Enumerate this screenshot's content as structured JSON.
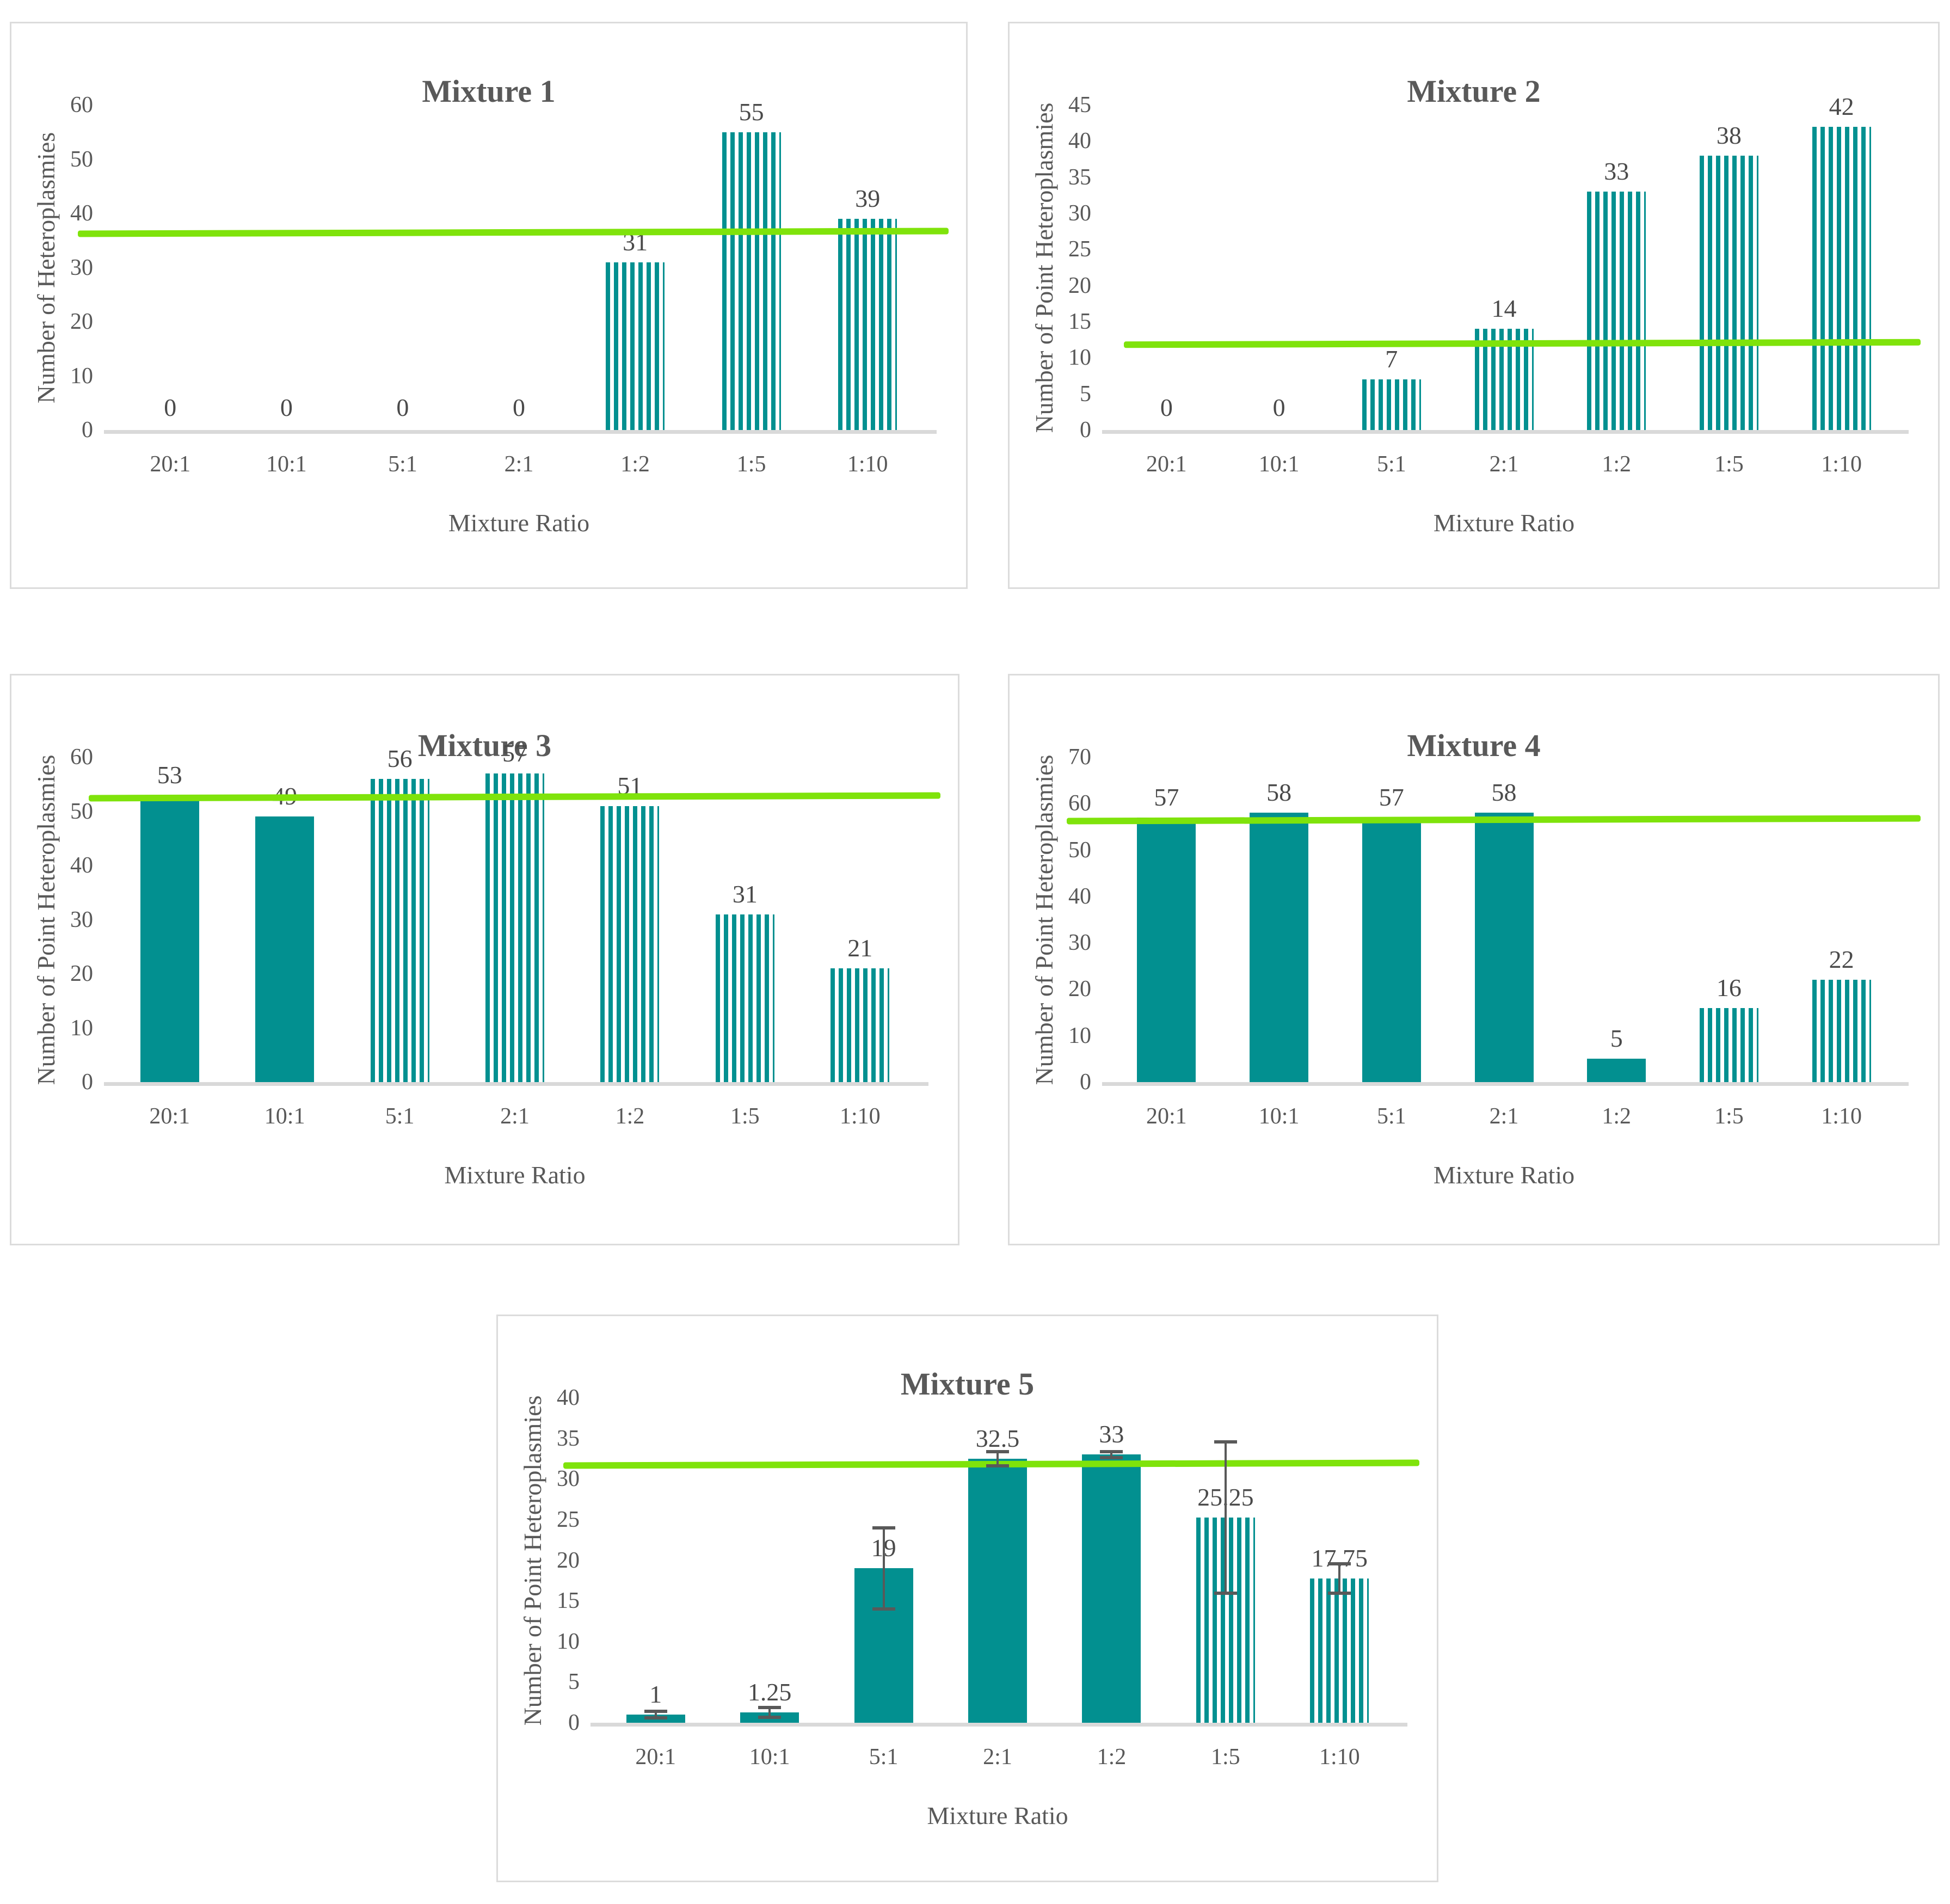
{
  "figure_title": "",
  "colors": {
    "bar_fill": "#029090",
    "stripe_gap": "#ffffff",
    "reference_line": "#7fe30b",
    "axis_line": "#d9d9d9",
    "panel_border": "#dcdcdc",
    "tick_text": "#595959",
    "label_text": "#4a4a4a",
    "error_bar": "#595959"
  },
  "chart_data": [
    {
      "type": "bar",
      "title": "Mixture 1",
      "xlabel": "Mixture Ratio",
      "ylabel": "Number of Heteroplasmies",
      "categories": [
        "20:1",
        "10:1",
        "5:1",
        "2:1",
        "1:2",
        "1:5",
        "1:10"
      ],
      "values": [
        0,
        0,
        0,
        0,
        31,
        55,
        39
      ],
      "value_labels": [
        "0",
        "0",
        "0",
        "0",
        "31",
        "55",
        "39"
      ],
      "bar_styles": [
        "none",
        "none",
        "none",
        "none",
        "striped",
        "striped",
        "striped"
      ],
      "errors": null,
      "ylim": [
        0,
        60
      ],
      "yticks": [
        0,
        10,
        20,
        30,
        40,
        50,
        60
      ],
      "reference_line_value": 36.5,
      "grid": false,
      "legend": false
    },
    {
      "type": "bar",
      "title": "Mixture 2",
      "xlabel": "Mixture Ratio",
      "ylabel": "Number of Point Heteroplasmies",
      "categories": [
        "20:1",
        "10:1",
        "5:1",
        "2:1",
        "1:2",
        "1:5",
        "1:10"
      ],
      "values": [
        0,
        0,
        7,
        14,
        33,
        38,
        42
      ],
      "value_labels": [
        "0",
        "0",
        "7",
        "14",
        "33",
        "38",
        "42"
      ],
      "bar_styles": [
        "none",
        "none",
        "striped",
        "striped",
        "striped",
        "striped",
        "striped"
      ],
      "errors": null,
      "ylim": [
        0,
        45
      ],
      "yticks": [
        0,
        5,
        10,
        15,
        20,
        25,
        30,
        35,
        40,
        45
      ],
      "reference_line_value": 12,
      "grid": false,
      "legend": false
    },
    {
      "type": "bar",
      "title": "Mixture 3",
      "xlabel": "Mixture Ratio",
      "ylabel": "Number of Point Heteroplasmies",
      "categories": [
        "20:1",
        "10:1",
        "5:1",
        "2:1",
        "1:2",
        "1:5",
        "1:10"
      ],
      "values": [
        53,
        49,
        56,
        57,
        51,
        31,
        21
      ],
      "value_labels": [
        "53",
        "49",
        "56",
        "57",
        "51",
        "31",
        "21"
      ],
      "bar_styles": [
        "solid",
        "solid",
        "striped",
        "striped",
        "striped",
        "striped",
        "striped"
      ],
      "errors": null,
      "ylim": [
        0,
        60
      ],
      "yticks": [
        0,
        10,
        20,
        30,
        40,
        50,
        60
      ],
      "reference_line_value": 52.7,
      "grid": false,
      "legend": false
    },
    {
      "type": "bar",
      "title": "Mixture 4",
      "xlabel": "Mixture Ratio",
      "ylabel": "Number of Point Heteroplasmies",
      "categories": [
        "20:1",
        "10:1",
        "5:1",
        "2:1",
        "1:2",
        "1:5",
        "1:10"
      ],
      "values": [
        57,
        58,
        57,
        58,
        5,
        16,
        22
      ],
      "value_labels": [
        "57",
        "58",
        "57",
        "58",
        "5",
        "16",
        "22"
      ],
      "bar_styles": [
        "solid",
        "solid",
        "solid",
        "solid",
        "solid",
        "striped",
        "striped"
      ],
      "errors": null,
      "ylim": [
        0,
        70
      ],
      "yticks": [
        0,
        10,
        20,
        30,
        40,
        50,
        60,
        70
      ],
      "reference_line_value": 56.5,
      "grid": false,
      "legend": false
    },
    {
      "type": "bar",
      "title": "Mixture 5",
      "xlabel": "Mixture Ratio",
      "ylabel": "Number of Point Heteroplasmies",
      "categories": [
        "20:1",
        "10:1",
        "5:1",
        "2:1",
        "1:2",
        "1:5",
        "1:10"
      ],
      "values": [
        1,
        1.25,
        19,
        32.5,
        33,
        25.25,
        17.75
      ],
      "value_labels": [
        "1",
        "1.25",
        "19",
        "32.5",
        "33",
        "25.25",
        "17.75"
      ],
      "bar_styles": [
        "solid",
        "solid",
        "solid",
        "solid",
        "solid",
        "striped",
        "striped"
      ],
      "errors": [
        0.4,
        0.6,
        5,
        0.9,
        0.4,
        9.3,
        1.8
      ],
      "ylim": [
        0,
        40
      ],
      "yticks": [
        0,
        5,
        10,
        15,
        20,
        25,
        30,
        35,
        40
      ],
      "reference_line_value": 31.8,
      "grid": false,
      "legend": false
    }
  ]
}
